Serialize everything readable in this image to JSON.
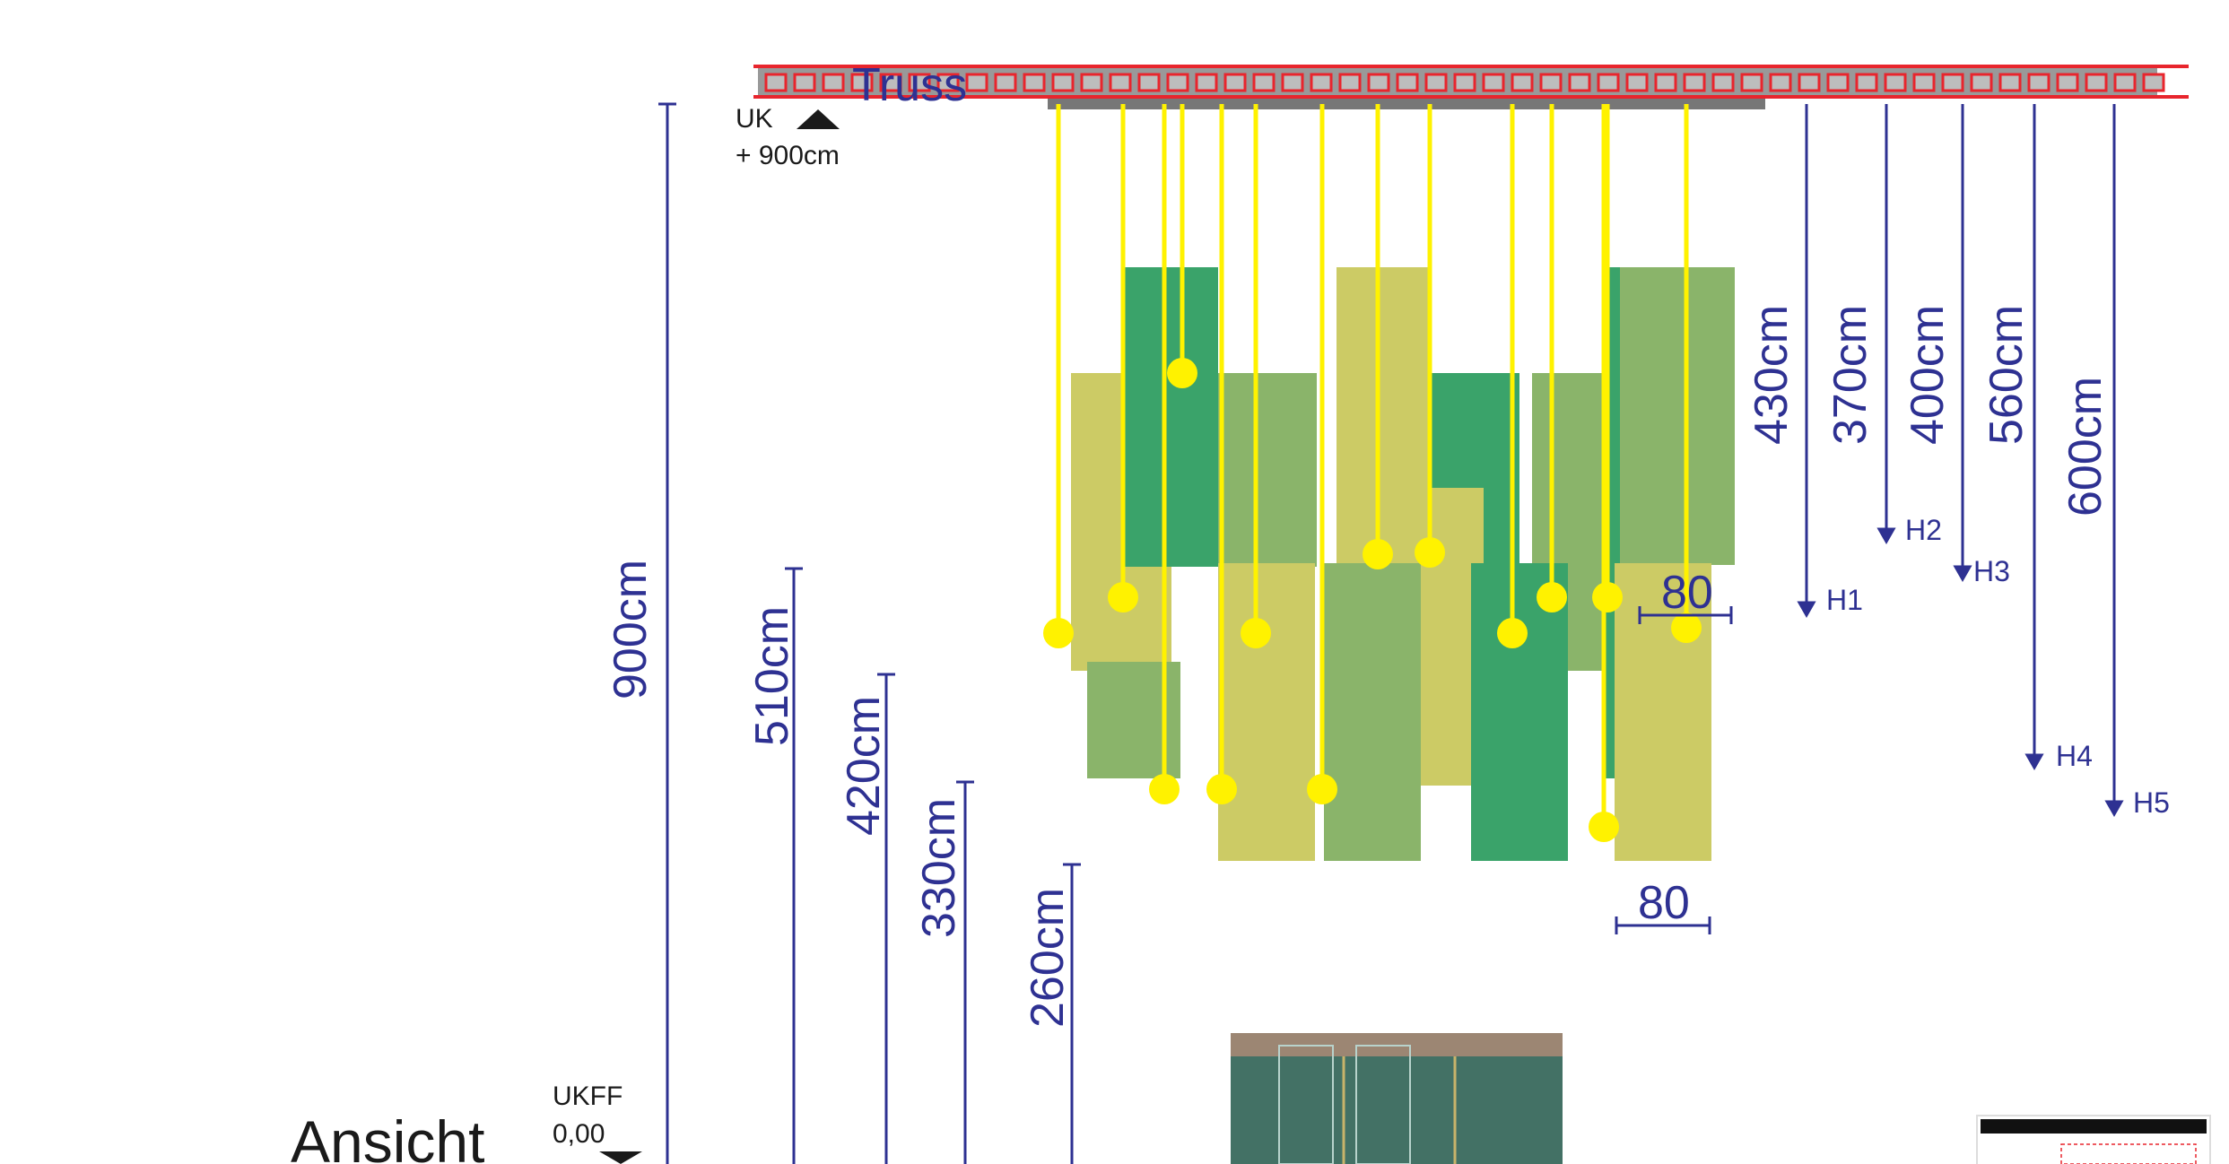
{
  "title": "Ansicht",
  "truss": {
    "label": "Truss"
  },
  "levels": {
    "top": {
      "label": "UK",
      "value": "+ 900cm"
    },
    "floor": {
      "label": "UKFF",
      "value": "0,00"
    }
  },
  "left_dimensions": [
    "900cm",
    "510cm",
    "420cm",
    "330cm",
    "260cm"
  ],
  "right_dimensions": [
    "430cm",
    "370cm",
    "400cm",
    "560cm",
    "600cm"
  ],
  "hang_heights": [
    "H1",
    "H2",
    "H3",
    "H4",
    "H5"
  ],
  "widths": [
    "80",
    "80"
  ],
  "colors": {
    "dimension": "#2e3192",
    "truss": "#e8252d",
    "truss_fill": "#999999",
    "cable": "#fff200",
    "panel_dark": "#3aa36a",
    "panel_mid": "#8ab46a",
    "panel_light": "#cccb65"
  }
}
